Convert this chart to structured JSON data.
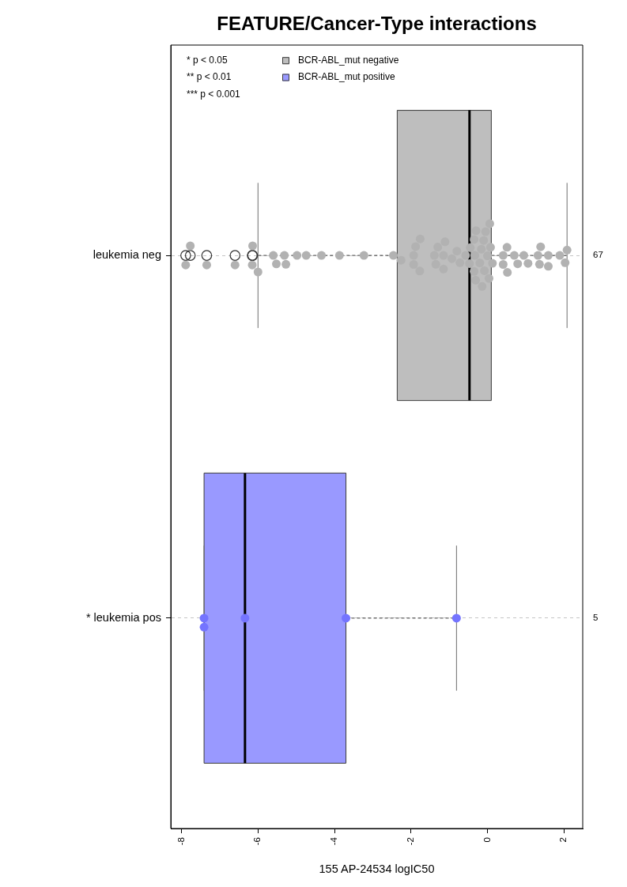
{
  "chart_data": {
    "type": "box",
    "title": "FEATURE/Cancer-Type interactions",
    "xlabel": "155 AP-24534 logIC50",
    "orientation": "horizontal",
    "categories": [
      "leukemia neg",
      "* leukemia pos"
    ],
    "xlim": [
      -8.28,
      2.49
    ],
    "xticks": [
      -8,
      -6,
      -4,
      -2,
      0,
      2
    ],
    "grid": "y",
    "legend": "top left",
    "marker": "circle",
    "series": [
      {
        "name": "BCR-ABL_mut negative",
        "color": "#bebebe",
        "boxes": [
          {
            "low": -6.0,
            "q1": -2.36,
            "median": -0.47,
            "q3": 0.1,
            "high": 2.08,
            "outliers": [
              -7.89,
              -7.77,
              -7.34,
              -6.6,
              -6.15,
              -6.14
            ]
          },
          null
        ]
      },
      {
        "name": "BCR-ABL_mut positive",
        "color": "#9999ff",
        "boxes": [
          null,
          {
            "low": -7.41,
            "q1": -7.41,
            "median": -6.34,
            "q3": -3.7,
            "high": -0.81
          }
        ]
      },
      {
        "type": "scatter",
        "color": "#b2b2b2",
        "x": [
          "leukemia neg",
          "leukemia neg",
          "leukemia neg",
          "leukemia neg",
          "leukemia neg",
          "leukemia neg",
          "leukemia neg",
          "leukemia neg",
          "leukemia neg",
          "leukemia neg",
          "leukemia neg",
          "leukemia neg",
          "leukemia neg",
          "leukemia neg",
          "leukemia neg",
          "leukemia neg",
          "leukemia neg",
          "leukemia neg",
          "leukemia neg",
          "leukemia neg",
          "leukemia neg",
          "leukemia neg",
          "leukemia neg",
          "leukemia neg",
          "leukemia neg",
          "leukemia neg",
          "leukemia neg",
          "leukemia neg",
          "leukemia neg",
          "leukemia neg",
          "leukemia neg",
          "leukemia neg",
          "leukemia neg",
          "leukemia neg",
          "leukemia neg",
          "leukemia neg",
          "leukemia neg",
          "leukemia neg",
          "leukemia neg",
          "leukemia neg",
          "leukemia neg",
          "leukemia neg",
          "leukemia neg",
          "leukemia neg",
          "leukemia neg",
          "leukemia neg",
          "leukemia neg",
          "leukemia neg",
          "leukemia neg",
          "leukemia neg",
          "leukemia neg",
          "leukemia neg",
          "leukemia neg",
          "leukemia neg",
          "leukemia neg",
          "leukemia neg",
          "leukemia neg",
          "leukemia neg",
          "leukemia neg",
          "leukemia neg",
          "leukemia neg",
          "leukemia neg",
          "leukemia neg",
          "leukemia neg",
          "leukemia neg",
          "leukemia neg",
          "leukemia neg"
        ],
        "values": [
          -7.89,
          -7.77,
          -7.34,
          -6.6,
          -6.15,
          -6.14,
          -6.0,
          -5.6,
          -5.52,
          -5.31,
          -5.27,
          -4.98,
          -4.74,
          -4.34,
          -3.87,
          -3.23,
          -2.46,
          -2.26,
          -1.93,
          -1.93,
          -1.88,
          -1.77,
          -1.76,
          -1.39,
          -1.35,
          -1.3,
          -1.15,
          -1.15,
          -1.11,
          -0.93,
          -0.8,
          -0.72,
          -0.57,
          -0.47,
          -0.45,
          -0.35,
          -0.35,
          -0.33,
          -0.31,
          -0.3,
          -0.2,
          -0.16,
          -0.14,
          -0.1,
          -0.08,
          -0.05,
          0,
          0.04,
          0.06,
          0.08,
          0.13,
          0.41,
          0.41,
          0.51,
          0.52,
          0.7,
          0.79,
          0.95,
          1.06,
          1.32,
          1.36,
          1.39,
          1.59,
          1.59,
          1.89,
          2.03,
          2.08
        ]
      },
      {
        "type": "scatter",
        "color": "#7474ff",
        "x": [
          "* leukemia pos",
          "* leukemia pos",
          "* leukemia pos",
          "* leukemia pos",
          "* leukemia pos"
        ],
        "values": [
          -7.41,
          -7.41,
          -6.34,
          -3.7,
          -0.81
        ]
      }
    ],
    "annotations": [
      "* p < 0.05",
      "** p < 0.01",
      "*** p < 0.001",
      "67",
      "5"
    ]
  }
}
